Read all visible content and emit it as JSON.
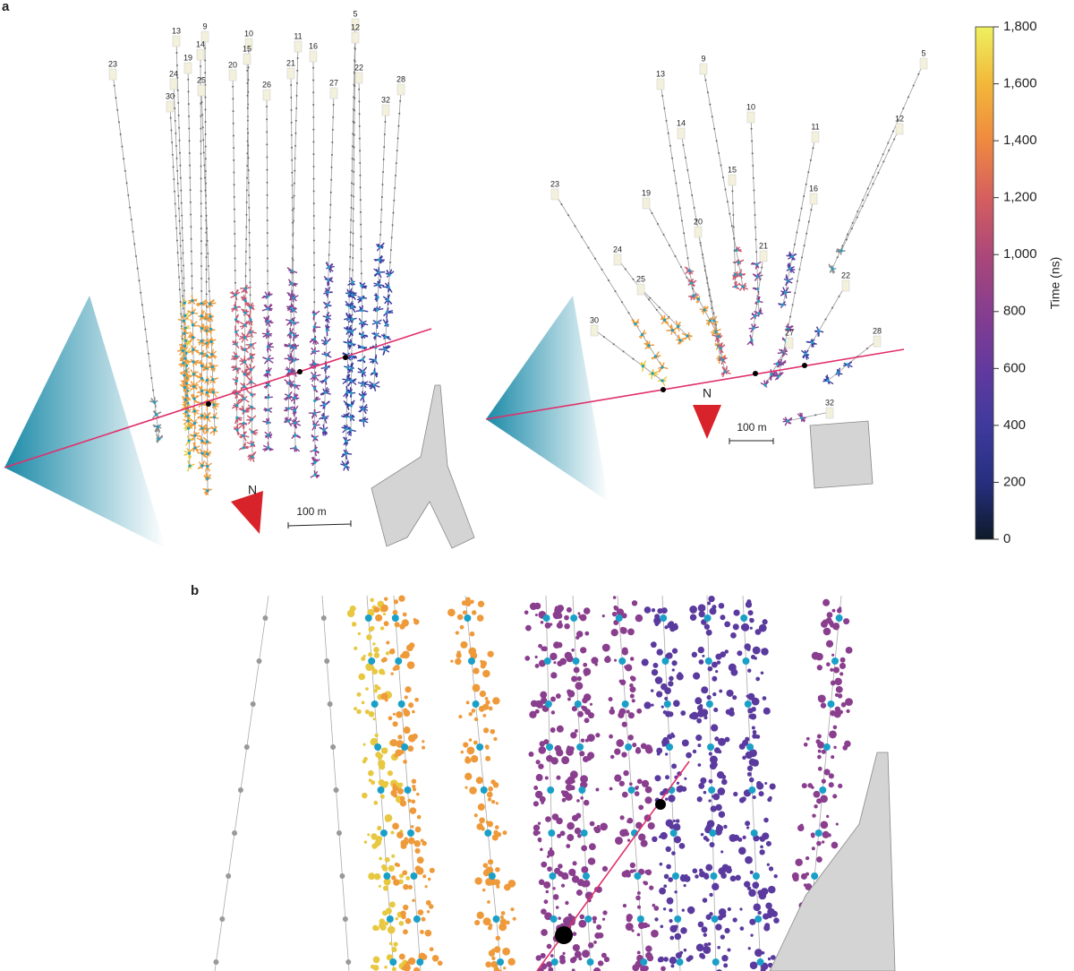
{
  "panel_a": {
    "label": "a",
    "left_view": {
      "strings": [
        "23",
        "13",
        "9",
        "14",
        "19",
        "24",
        "30",
        "25",
        "10",
        "15",
        "20",
        "26",
        "11",
        "16",
        "21",
        "27",
        "5",
        "12",
        "22",
        "32",
        "28"
      ],
      "north": "N",
      "scale": "100 m"
    },
    "right_view": {
      "strings": [
        "13",
        "9",
        "5",
        "10",
        "14",
        "12",
        "11",
        "15",
        "23",
        "19",
        "16",
        "20",
        "21",
        "24",
        "22",
        "25",
        "30",
        "27",
        "28",
        "32"
      ],
      "north": "N",
      "scale": "100 m"
    }
  },
  "panel_b": {
    "label": "b"
  },
  "colorbar": {
    "title": "Time (ns)",
    "lim": [
      0,
      1800
    ],
    "ticks": [
      0,
      200,
      400,
      600,
      800,
      {
        "value": 1000,
        "label": "1,000"
      },
      {
        "value": 1200,
        "label": "1,200"
      },
      {
        "value": 1400,
        "label": "1,400"
      },
      {
        "value": 1600,
        "label": "1,600"
      },
      {
        "value": 1800,
        "label": "1,800"
      }
    ]
  }
}
